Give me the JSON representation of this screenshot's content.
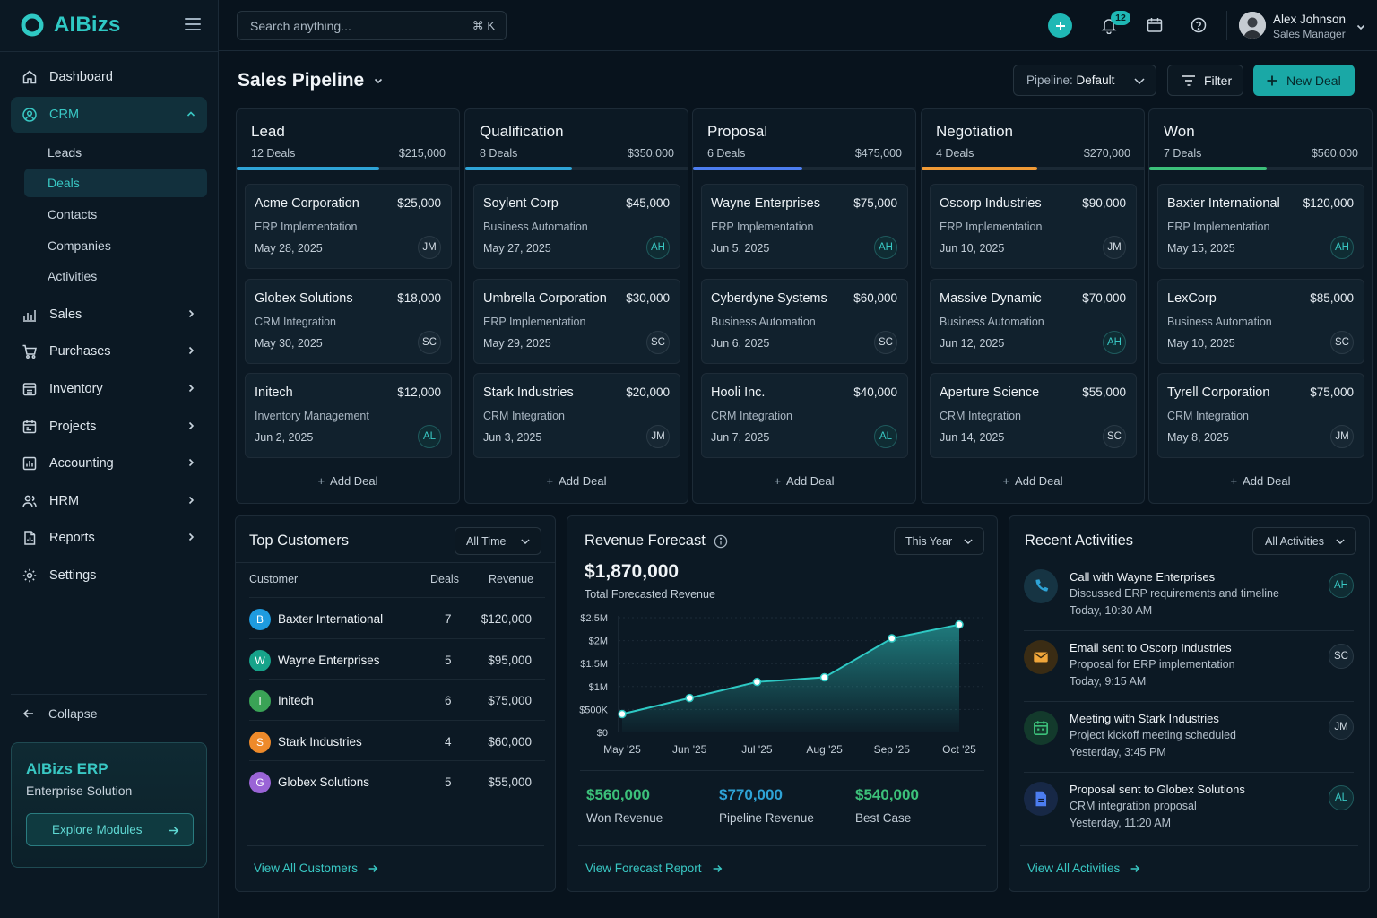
{
  "brand": {
    "name": "AIBizs"
  },
  "search": {
    "placeholder": "Search anything...",
    "shortcut": "⌘ K"
  },
  "notifications": {
    "count": "12"
  },
  "user": {
    "name": "Alex Johnson",
    "role": "Sales Manager"
  },
  "nav": {
    "dashboard": "Dashboard",
    "crm": "CRM",
    "crm_sub": [
      "Leads",
      "Deals",
      "Contacts",
      "Companies",
      "Activities"
    ],
    "sales": "Sales",
    "purchases": "Purchases",
    "inventory": "Inventory",
    "projects": "Projects",
    "accounting": "Accounting",
    "hrm": "HRM",
    "reports": "Reports",
    "settings": "Settings",
    "collapse": "Collapse"
  },
  "promo": {
    "title": "AIBizs ERP",
    "subtitle": "Enterprise Solution",
    "button": "Explore Modules"
  },
  "page": {
    "title": "Sales Pipeline",
    "pipeline_prefix": "Pipeline: ",
    "pipeline_value": "Default",
    "filter": "Filter",
    "new_deal": "New Deal",
    "add_deal": "Add Deal"
  },
  "columns": [
    {
      "title": "Lead",
      "count": "12 Deals",
      "total": "$215,000",
      "color": "#2ea3d6",
      "progress": 0.64,
      "deals": [
        {
          "name": "Acme Corporation",
          "amount": "$25,000",
          "type": "ERP Implementation",
          "date": "May 28, 2025",
          "owner": "JM"
        },
        {
          "name": "Globex Solutions",
          "amount": "$18,000",
          "type": "CRM Integration",
          "date": "May 30, 2025",
          "owner": "SC"
        },
        {
          "name": "Initech",
          "amount": "$12,000",
          "type": "Inventory Management",
          "date": "Jun 2, 2025",
          "owner": "AL"
        }
      ]
    },
    {
      "title": "Qualification",
      "count": "8 Deals",
      "total": "$350,000",
      "color": "#2ea3d6",
      "progress": 0.48,
      "deals": [
        {
          "name": "Soylent Corp",
          "amount": "$45,000",
          "type": "Business Automation",
          "date": "May 27, 2025",
          "owner": "AH"
        },
        {
          "name": "Umbrella Corporation",
          "amount": "$30,000",
          "type": "ERP Implementation",
          "date": "May 29, 2025",
          "owner": "SC"
        },
        {
          "name": "Stark Industries",
          "amount": "$20,000",
          "type": "CRM Integration",
          "date": "Jun 3, 2025",
          "owner": "JM"
        }
      ]
    },
    {
      "title": "Proposal",
      "count": "6 Deals",
      "total": "$475,000",
      "color": "#4c7df0",
      "progress": 0.49,
      "deals": [
        {
          "name": "Wayne Enterprises",
          "amount": "$75,000",
          "type": "ERP Implementation",
          "date": "Jun 5, 2025",
          "owner": "AH"
        },
        {
          "name": "Cyberdyne Systems",
          "amount": "$60,000",
          "type": "Business Automation",
          "date": "Jun 6, 2025",
          "owner": "SC"
        },
        {
          "name": "Hooli Inc.",
          "amount": "$40,000",
          "type": "CRM Integration",
          "date": "Jun 7, 2025",
          "owner": "AL"
        }
      ]
    },
    {
      "title": "Negotiation",
      "count": "4 Deals",
      "total": "$270,000",
      "color": "#f09a36",
      "progress": 0.52,
      "deals": [
        {
          "name": "Oscorp Industries",
          "amount": "$90,000",
          "type": "ERP Implementation",
          "date": "Jun 10, 2025",
          "owner": "JM"
        },
        {
          "name": "Massive Dynamic",
          "amount": "$70,000",
          "type": "Business Automation",
          "date": "Jun 12, 2025",
          "owner": "AH"
        },
        {
          "name": "Aperture Science",
          "amount": "$55,000",
          "type": "CRM Integration",
          "date": "Jun 14, 2025",
          "owner": "SC"
        }
      ]
    },
    {
      "title": "Won",
      "count": "7 Deals",
      "total": "$560,000",
      "color": "#3cc07a",
      "progress": 0.53,
      "deals": [
        {
          "name": "Baxter International",
          "amount": "$120,000",
          "type": "ERP Implementation",
          "date": "May 15, 2025",
          "owner": "AH"
        },
        {
          "name": "LexCorp",
          "amount": "$85,000",
          "type": "Business Automation",
          "date": "May 10, 2025",
          "owner": "SC"
        },
        {
          "name": "Tyrell Corporation",
          "amount": "$75,000",
          "type": "CRM Integration",
          "date": "May 8, 2025",
          "owner": "JM"
        }
      ]
    }
  ],
  "top_customers": {
    "title": "Top Customers",
    "filter": "All Time",
    "headers": {
      "customer": "Customer",
      "deals": "Deals",
      "revenue": "Revenue"
    },
    "rows": [
      {
        "initial": "B",
        "name": "Baxter International",
        "deals": "7",
        "revenue": "$120,000",
        "color": "#1e9be0"
      },
      {
        "initial": "W",
        "name": "Wayne Enterprises",
        "deals": "5",
        "revenue": "$95,000",
        "color": "#17a38a"
      },
      {
        "initial": "I",
        "name": "Initech",
        "deals": "6",
        "revenue": "$75,000",
        "color": "#3aa356"
      },
      {
        "initial": "S",
        "name": "Stark Industries",
        "deals": "4",
        "revenue": "$60,000",
        "color": "#ee8a2a"
      },
      {
        "initial": "G",
        "name": "Globex Solutions",
        "deals": "5",
        "revenue": "$55,000",
        "color": "#9a64d6"
      }
    ],
    "link": "View All Customers"
  },
  "forecast": {
    "title": "Revenue Forecast",
    "filter": "This Year",
    "total": "$1,870,000",
    "total_label": "Total Forecasted Revenue",
    "stats": [
      {
        "value": "$560,000",
        "label": "Won Revenue",
        "color": "#3cc07a"
      },
      {
        "value": "$770,000",
        "label": "Pipeline Revenue",
        "color": "#2ea3d6"
      },
      {
        "value": "$540,000",
        "label": "Best Case",
        "color": "#3cc07a"
      }
    ],
    "link": "View Forecast Report"
  },
  "chart_data": {
    "type": "area",
    "x": [
      "May '25",
      "Jun '25",
      "Jul '25",
      "Aug '25",
      "Sep '25",
      "Oct '25"
    ],
    "values": [
      0.4,
      0.75,
      1.1,
      1.2,
      2.05,
      2.35
    ],
    "y_ticks": [
      "$0",
      "$500K",
      "$1M",
      "$1.5M",
      "$2M",
      "$2.5M"
    ],
    "ylim": [
      0,
      2.5
    ],
    "y_unit": "millions USD",
    "grid": true,
    "color": "#2ec9c4"
  },
  "activities": {
    "title": "Recent Activities",
    "filter": "All Activities",
    "items": [
      {
        "title": "Call with Wayne Enterprises",
        "desc": "Discussed ERP requirements and timeline",
        "time": "Today, 10:30 AM",
        "owner": "AH",
        "icon": "phone-icon",
        "color": "#2ea3d6"
      },
      {
        "title": "Email sent to Oscorp Industries",
        "desc": "Proposal for ERP implementation",
        "time": "Today, 9:15 AM",
        "owner": "SC",
        "icon": "mail-icon",
        "color": "#f0a63a"
      },
      {
        "title": "Meeting with Stark Industries",
        "desc": "Project kickoff meeting scheduled",
        "time": "Yesterday, 3:45 PM",
        "owner": "JM",
        "icon": "calendar-icon",
        "color": "#3cc07a"
      },
      {
        "title": "Proposal sent to Globex Solutions",
        "desc": "CRM integration proposal",
        "time": "Yesterday, 11:20 AM",
        "owner": "AL",
        "icon": "document-icon",
        "color": "#4c7df0"
      }
    ],
    "link": "View All Activities"
  }
}
